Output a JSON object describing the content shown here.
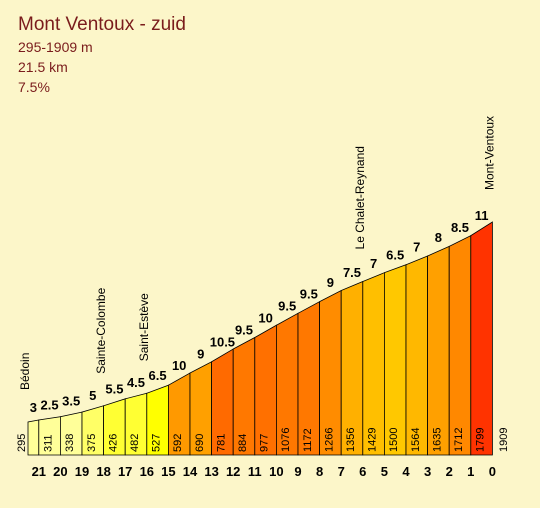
{
  "chart_data": {
    "type": "climb-profile",
    "title": "Mont Ventoux - zuid",
    "subtitle": [
      "295-1909 m",
      "21.5 km",
      "7.5%"
    ],
    "km": [
      21,
      20,
      19,
      18,
      17,
      16,
      15,
      14,
      13,
      12,
      11,
      10,
      9,
      8,
      7,
      6,
      5,
      4,
      3,
      2,
      1,
      0
    ],
    "elevations": [
      295,
      311,
      338,
      375,
      426,
      482,
      527,
      592,
      690,
      781,
      884,
      977,
      1076,
      1172,
      1266,
      1356,
      1429,
      1500,
      1564,
      1635,
      1712,
      1799,
      1909
    ],
    "gradients": [
      3,
      2.5,
      3.5,
      5,
      5.5,
      4.5,
      6.5,
      10,
      9,
      10.5,
      9.5,
      10,
      9.5,
      9.5,
      9,
      7.5,
      7,
      6.5,
      7,
      8,
      8.5,
      11
    ],
    "colors": [
      "#ffff99",
      "#ffff99",
      "#ffff99",
      "#ffff66",
      "#ffff33",
      "#ffff33",
      "#ffff00",
      "#ff9900",
      "#ffa000",
      "#ff6a00",
      "#ff7800",
      "#ff7000",
      "#ff7800",
      "#ff7800",
      "#ff8c00",
      "#ffb000",
      "#ffbf00",
      "#ffc800",
      "#ffb800",
      "#ffa000",
      "#ff8800",
      "#ff3300"
    ],
    "landmarks": [
      "Bédoin",
      null,
      null,
      null,
      "Sainte-Colombe",
      null,
      "Saint-Estève",
      null,
      null,
      null,
      null,
      null,
      null,
      null,
      null,
      null,
      "Le Chalet-Reynand",
      null,
      null,
      null,
      null,
      null,
      "Mont-Ventoux"
    ]
  }
}
